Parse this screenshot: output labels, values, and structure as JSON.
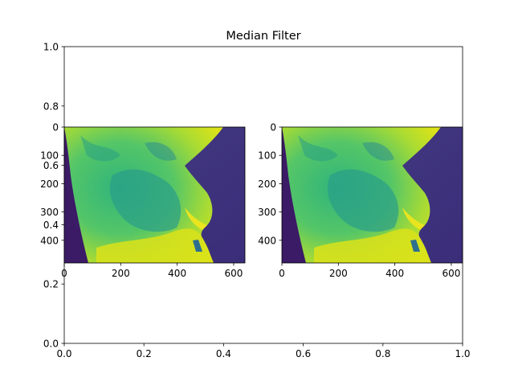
{
  "chart_data": [
    {
      "type": "axes",
      "title": "Median Filter",
      "xlim": [
        0.0,
        1.0
      ],
      "ylim": [
        0.0,
        1.0
      ],
      "xticks": [
        "0.0",
        "0.2",
        "0.4",
        "0.6",
        "0.8",
        "1.0"
      ],
      "yticks": [
        "0.0",
        "0.2",
        "0.4",
        "0.6",
        "0.8",
        "1.0"
      ],
      "grid": false
    },
    {
      "type": "heatmap",
      "colormap": "viridis",
      "xlim": [
        0,
        640
      ],
      "ylim": [
        480,
        0
      ],
      "xticks": [
        "0",
        "200",
        "400",
        "600"
      ],
      "yticks": [
        "0",
        "100",
        "200",
        "300",
        "400"
      ],
      "grid": false
    },
    {
      "type": "heatmap",
      "colormap": "viridis",
      "xlim": [
        0,
        640
      ],
      "ylim": [
        480,
        0
      ],
      "xticks": [
        "0",
        "200",
        "400",
        "600"
      ],
      "yticks": [
        "0",
        "100",
        "200",
        "300",
        "400"
      ],
      "grid": false
    }
  ],
  "colors": {
    "viridis_dark": "#440154",
    "viridis_bg": "#3b2a7e",
    "viridis_blue": "#31688e",
    "viridis_teal": "#21918c",
    "viridis_green": "#35b779",
    "viridis_yellow": "#c8e020",
    "viridis_bright": "#fde725"
  }
}
